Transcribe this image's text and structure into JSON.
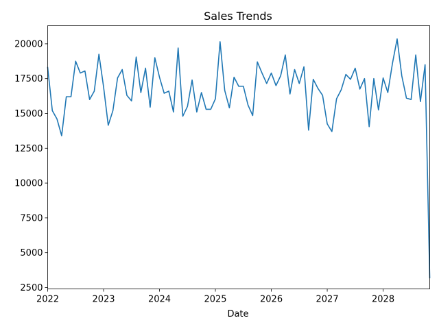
{
  "chart_data": {
    "type": "line",
    "title": "Sales Trends",
    "xlabel": "Date",
    "ylabel": "",
    "grid": false,
    "legend": "none",
    "x_ticks": [
      "2022",
      "2023",
      "2024",
      "2025",
      "2026",
      "2027",
      "2028"
    ],
    "y_ticks": [
      "2500",
      "5000",
      "7500",
      "10000",
      "12500",
      "15000",
      "17500",
      "20000"
    ],
    "xlim": [
      "2022-01",
      "2028-11"
    ],
    "ylim": [
      2400,
      21300
    ],
    "series": [
      {
        "color": "#1f77b4",
        "points": [
          [
            "2022-01",
            18300
          ],
          [
            "2022-02",
            15200
          ],
          [
            "2022-03",
            14600
          ],
          [
            "2022-04",
            13400
          ],
          [
            "2022-05",
            16200
          ],
          [
            "2022-06",
            16200
          ],
          [
            "2022-07",
            18750
          ],
          [
            "2022-08",
            17900
          ],
          [
            "2022-09",
            18050
          ],
          [
            "2022-10",
            16000
          ],
          [
            "2022-11",
            16600
          ],
          [
            "2022-12",
            19250
          ],
          [
            "2023-01",
            16900
          ],
          [
            "2023-02",
            14150
          ],
          [
            "2023-03",
            15200
          ],
          [
            "2023-04",
            17550
          ],
          [
            "2023-05",
            18150
          ],
          [
            "2023-06",
            16300
          ],
          [
            "2023-07",
            15900
          ],
          [
            "2023-08",
            19050
          ],
          [
            "2023-09",
            16500
          ],
          [
            "2023-10",
            18250
          ],
          [
            "2023-11",
            15450
          ],
          [
            "2023-12",
            19000
          ],
          [
            "2024-01",
            17600
          ],
          [
            "2024-02",
            16450
          ],
          [
            "2024-03",
            16600
          ],
          [
            "2024-04",
            15100
          ],
          [
            "2024-05",
            19700
          ],
          [
            "2024-06",
            14800
          ],
          [
            "2024-07",
            15500
          ],
          [
            "2024-08",
            17400
          ],
          [
            "2024-09",
            15100
          ],
          [
            "2024-10",
            16500
          ],
          [
            "2024-11",
            15300
          ],
          [
            "2024-12",
            15300
          ],
          [
            "2025-01",
            16050
          ],
          [
            "2025-02",
            20150
          ],
          [
            "2025-03",
            16650
          ],
          [
            "2025-04",
            15400
          ],
          [
            "2025-05",
            17600
          ],
          [
            "2025-06",
            16950
          ],
          [
            "2025-07",
            16950
          ],
          [
            "2025-08",
            15600
          ],
          [
            "2025-09",
            14850
          ],
          [
            "2025-10",
            18700
          ],
          [
            "2025-11",
            17900
          ],
          [
            "2025-12",
            17150
          ],
          [
            "2026-01",
            17900
          ],
          [
            "2026-02",
            17000
          ],
          [
            "2026-03",
            17700
          ],
          [
            "2026-04",
            19200
          ],
          [
            "2026-05",
            16400
          ],
          [
            "2026-06",
            18150
          ],
          [
            "2026-07",
            17150
          ],
          [
            "2026-08",
            18350
          ],
          [
            "2026-09",
            13800
          ],
          [
            "2026-10",
            17450
          ],
          [
            "2026-11",
            16800
          ],
          [
            "2026-12",
            16300
          ],
          [
            "2027-01",
            14250
          ],
          [
            "2027-02",
            13700
          ],
          [
            "2027-03",
            16050
          ],
          [
            "2027-04",
            16700
          ],
          [
            "2027-05",
            17800
          ],
          [
            "2027-06",
            17450
          ],
          [
            "2027-07",
            18250
          ],
          [
            "2027-08",
            16750
          ],
          [
            "2027-09",
            17500
          ],
          [
            "2027-10",
            14050
          ],
          [
            "2027-11",
            17500
          ],
          [
            "2027-12",
            15250
          ],
          [
            "2028-01",
            17550
          ],
          [
            "2028-02",
            16500
          ],
          [
            "2028-03",
            18600
          ],
          [
            "2028-04",
            20350
          ],
          [
            "2028-05",
            17700
          ],
          [
            "2028-06",
            16100
          ],
          [
            "2028-07",
            16000
          ],
          [
            "2028-08",
            19200
          ],
          [
            "2028-09",
            15850
          ],
          [
            "2028-10",
            18500
          ],
          [
            "2028-11",
            3200
          ]
        ]
      }
    ]
  }
}
